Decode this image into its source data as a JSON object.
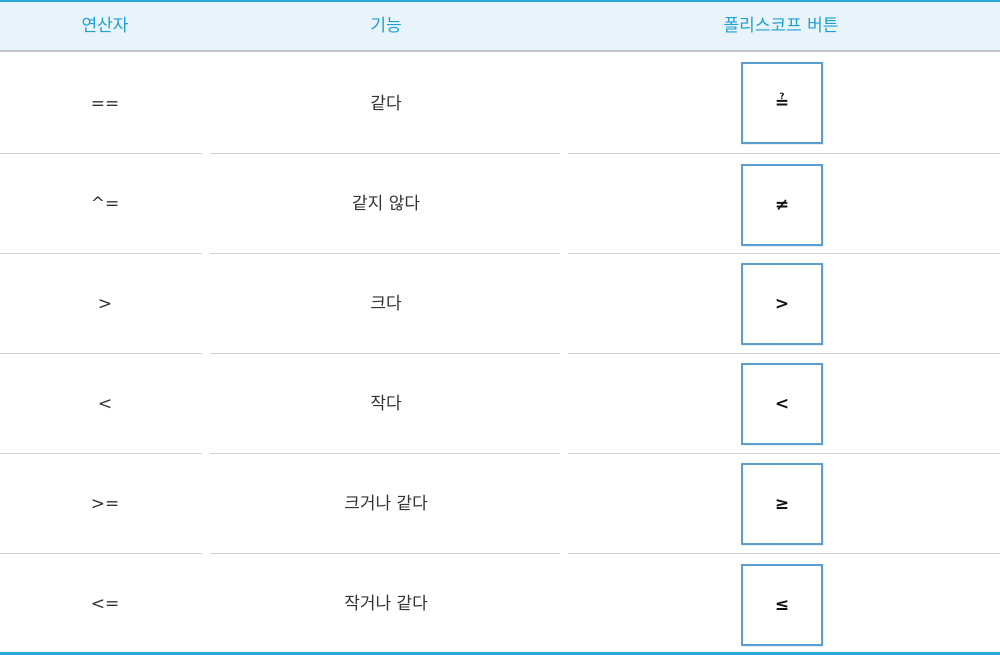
{
  "table": {
    "headers": [
      "연산자",
      "기능",
      "폴리스코프 버튼"
    ],
    "rows": [
      {
        "operator": "==",
        "function": "같다",
        "button_symbol": "≟",
        "button_icon": "equal-question-icon"
      },
      {
        "operator": "^=",
        "function": "같지 않다",
        "button_symbol": "≠",
        "button_icon": "not-equal-icon"
      },
      {
        "operator": ">",
        "function": "크다",
        "button_symbol": ">",
        "button_icon": "greater-than-icon"
      },
      {
        "operator": "<",
        "function": "작다",
        "button_symbol": "<",
        "button_icon": "less-than-icon"
      },
      {
        "operator": ">=",
        "function": "크거나 같다",
        "button_symbol": "≥",
        "button_icon": "greater-equal-icon"
      },
      {
        "operator": "<=",
        "function": "작거나 같다",
        "button_symbol": "≤",
        "button_icon": "less-equal-icon"
      }
    ]
  },
  "colors": {
    "header_text": "#1ea0d6",
    "header_bg": "#e9f4fa",
    "accent_line": "#2aa6d8",
    "button_border": "#5b9fd0"
  }
}
